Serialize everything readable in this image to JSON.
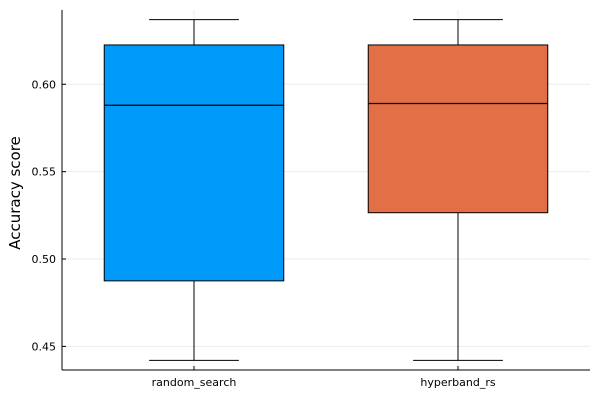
{
  "chart_data": {
    "type": "box",
    "title": "",
    "xlabel": "",
    "ylabel": "Accuracy score",
    "categories": [
      "random_search",
      "hyperband_rs"
    ],
    "colors": [
      "#009afa",
      "#e26f46"
    ],
    "boxes": [
      {
        "category": "random_search",
        "whisker_low": 0.442,
        "q1": 0.4875,
        "median": 0.588,
        "q3": 0.6225,
        "whisker_high": 0.637
      },
      {
        "category": "hyperband_rs",
        "whisker_low": 0.442,
        "q1": 0.5265,
        "median": 0.589,
        "q3": 0.6225,
        "whisker_high": 0.637
      }
    ],
    "ylim": [
      0.4365,
      0.6425
    ],
    "yticks": [
      0.45,
      0.5,
      0.55,
      0.6
    ],
    "ytick_labels": [
      "0.45",
      "0.50",
      "0.55",
      "0.60"
    ],
    "grid": true,
    "legend": "none"
  }
}
